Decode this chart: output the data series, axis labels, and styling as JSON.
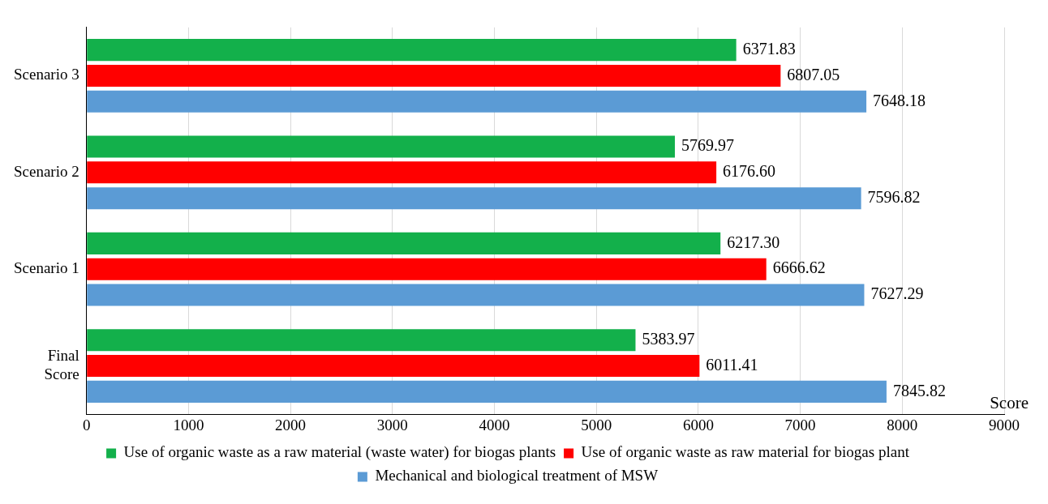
{
  "chart_data": {
    "type": "bar",
    "orientation": "horizontal",
    "xlabel": "Score",
    "categories": [
      "Scenario 3",
      "Scenario 2",
      "Scenario 1",
      "Final Score"
    ],
    "series": [
      {
        "name": "Use of organic waste as a raw material (waste water) for biogas plants",
        "color": "#13b04b",
        "values": [
          6371.83,
          5769.97,
          6217.3,
          5383.97
        ],
        "value_labels": [
          "6371.83",
          "5769.97",
          "6217.30",
          "5383.97"
        ]
      },
      {
        "name": "Use of organic waste as raw material for biogas plant",
        "color": "#ff0000",
        "values": [
          6807.05,
          6176.6,
          6666.62,
          6011.41
        ],
        "value_labels": [
          "6807.05",
          "6176.60",
          "6666.62",
          "6011.41"
        ]
      },
      {
        "name": "Mechanical and biological treatment of MSW",
        "color": "#5b9bd5",
        "values": [
          7648.18,
          7596.82,
          7627.29,
          7845.82
        ],
        "value_labels": [
          "7648.18",
          "7596.82",
          "7627.29",
          "7845.82"
        ]
      }
    ],
    "xlim": [
      0,
      9000
    ],
    "xticks": [
      0,
      1000,
      2000,
      3000,
      4000,
      5000,
      6000,
      7000,
      8000,
      9000
    ],
    "grid": "x",
    "legend": "bottom"
  }
}
